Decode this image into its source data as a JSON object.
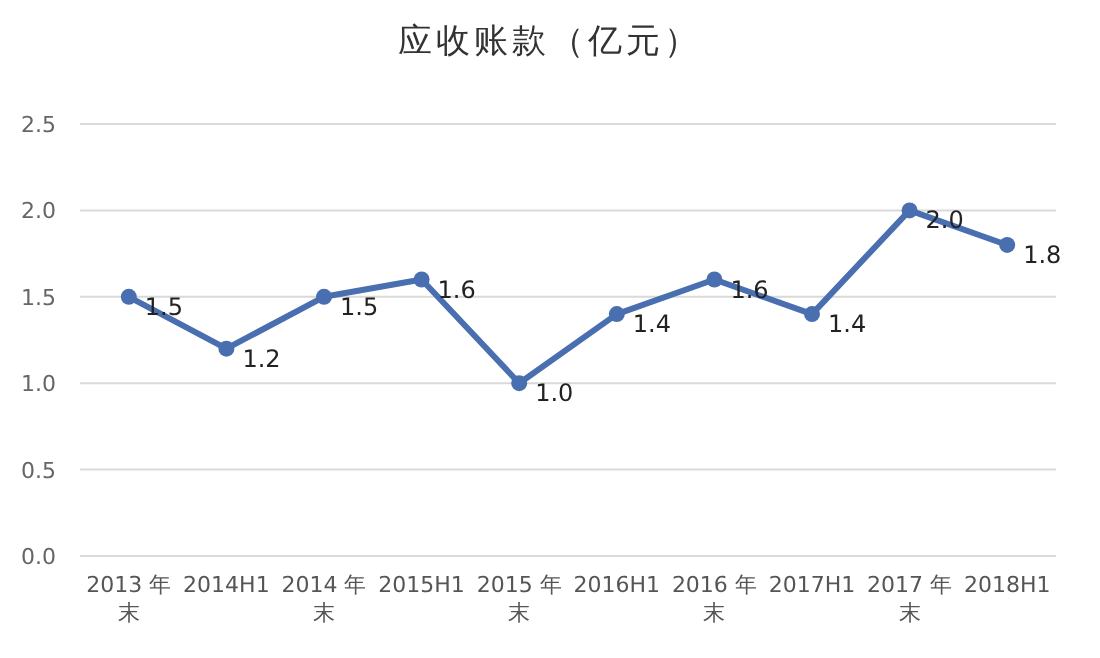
{
  "chart_data": {
    "type": "line",
    "title": "应收账款（亿元）",
    "categories": [
      "2013 年末",
      "2014H1",
      "2014 年末",
      "2015H1",
      "2015 年末",
      "2016H1",
      "2016 年末",
      "2017H1",
      "2017 年末",
      "2018H1"
    ],
    "series": [
      {
        "color": "#4a6fb0",
        "values": [
          1.5,
          1.2,
          1.5,
          1.6,
          1.0,
          1.4,
          1.6,
          1.4,
          2.0,
          1.8
        ],
        "value_labels": [
          "1.5",
          "1.2",
          "1.5",
          "1.6",
          "1.0",
          "1.4",
          "1.6",
          "1.4",
          "2.0",
          "1.8"
        ]
      }
    ],
    "ylim": [
      0,
      2.5
    ],
    "yticks": [
      {
        "value": 0,
        "label": "0.0"
      },
      0.5,
      {
        "value": 1,
        "label": "1.0"
      },
      1.5,
      {
        "value": 2,
        "label": "2.0"
      },
      2.5
    ],
    "grid": "y",
    "marker": "circle",
    "line_style": "solid"
  }
}
